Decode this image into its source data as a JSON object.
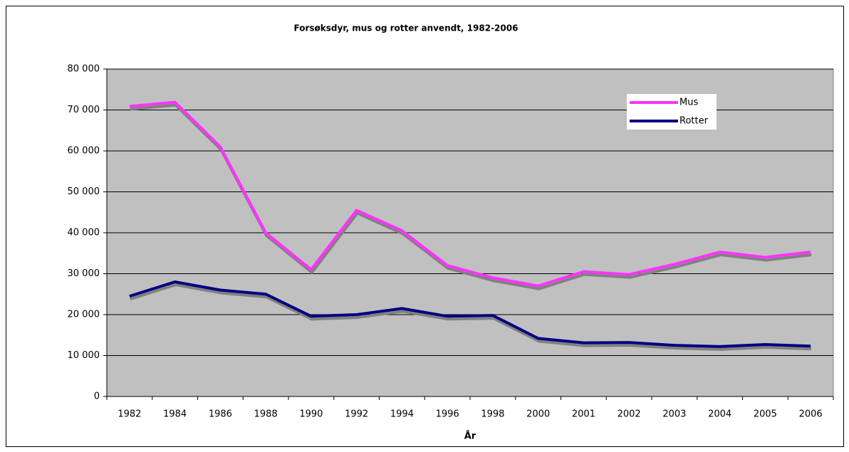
{
  "chart_data": {
    "type": "line",
    "title": "Forsøksdyr, mus og rotter anvendt, 1982-2006",
    "x_label": "År",
    "categories": [
      "1982",
      "1984",
      "1986",
      "1988",
      "1990",
      "1992",
      "1994",
      "1996",
      "1998",
      "2000",
      "2001",
      "2002",
      "2003",
      "2004",
      "2005",
      "2006"
    ],
    "series": [
      {
        "name": "Mus",
        "color": "#ff33ff",
        "values": [
          70900,
          71900,
          61000,
          40000,
          31000,
          45500,
          40500,
          32000,
          29000,
          27000,
          30500,
          29800,
          32300,
          35300,
          34000,
          35300
        ]
      },
      {
        "name": "Rotter",
        "color": "#000080",
        "values": [
          24500,
          28000,
          26000,
          25000,
          19600,
          20000,
          21500,
          19600,
          19800,
          14200,
          13100,
          13200,
          12500,
          12200,
          12700,
          12300
        ]
      }
    ],
    "ylim": [
      0,
      80000
    ],
    "yticks": [
      0,
      {
        "value": 10000,
        "label": "10 000"
      },
      {
        "value": 20000,
        "label": "20 000"
      },
      {
        "value": 30000,
        "label": "30 000"
      },
      {
        "value": 40000,
        "label": "40 000"
      },
      {
        "value": 50000,
        "label": "50 000"
      },
      {
        "value": 60000,
        "label": "60 000"
      },
      {
        "value": 70000,
        "label": "70 000"
      },
      {
        "value": 80000,
        "label": "80 000"
      }
    ],
    "grid": true,
    "legend": "upper right"
  }
}
